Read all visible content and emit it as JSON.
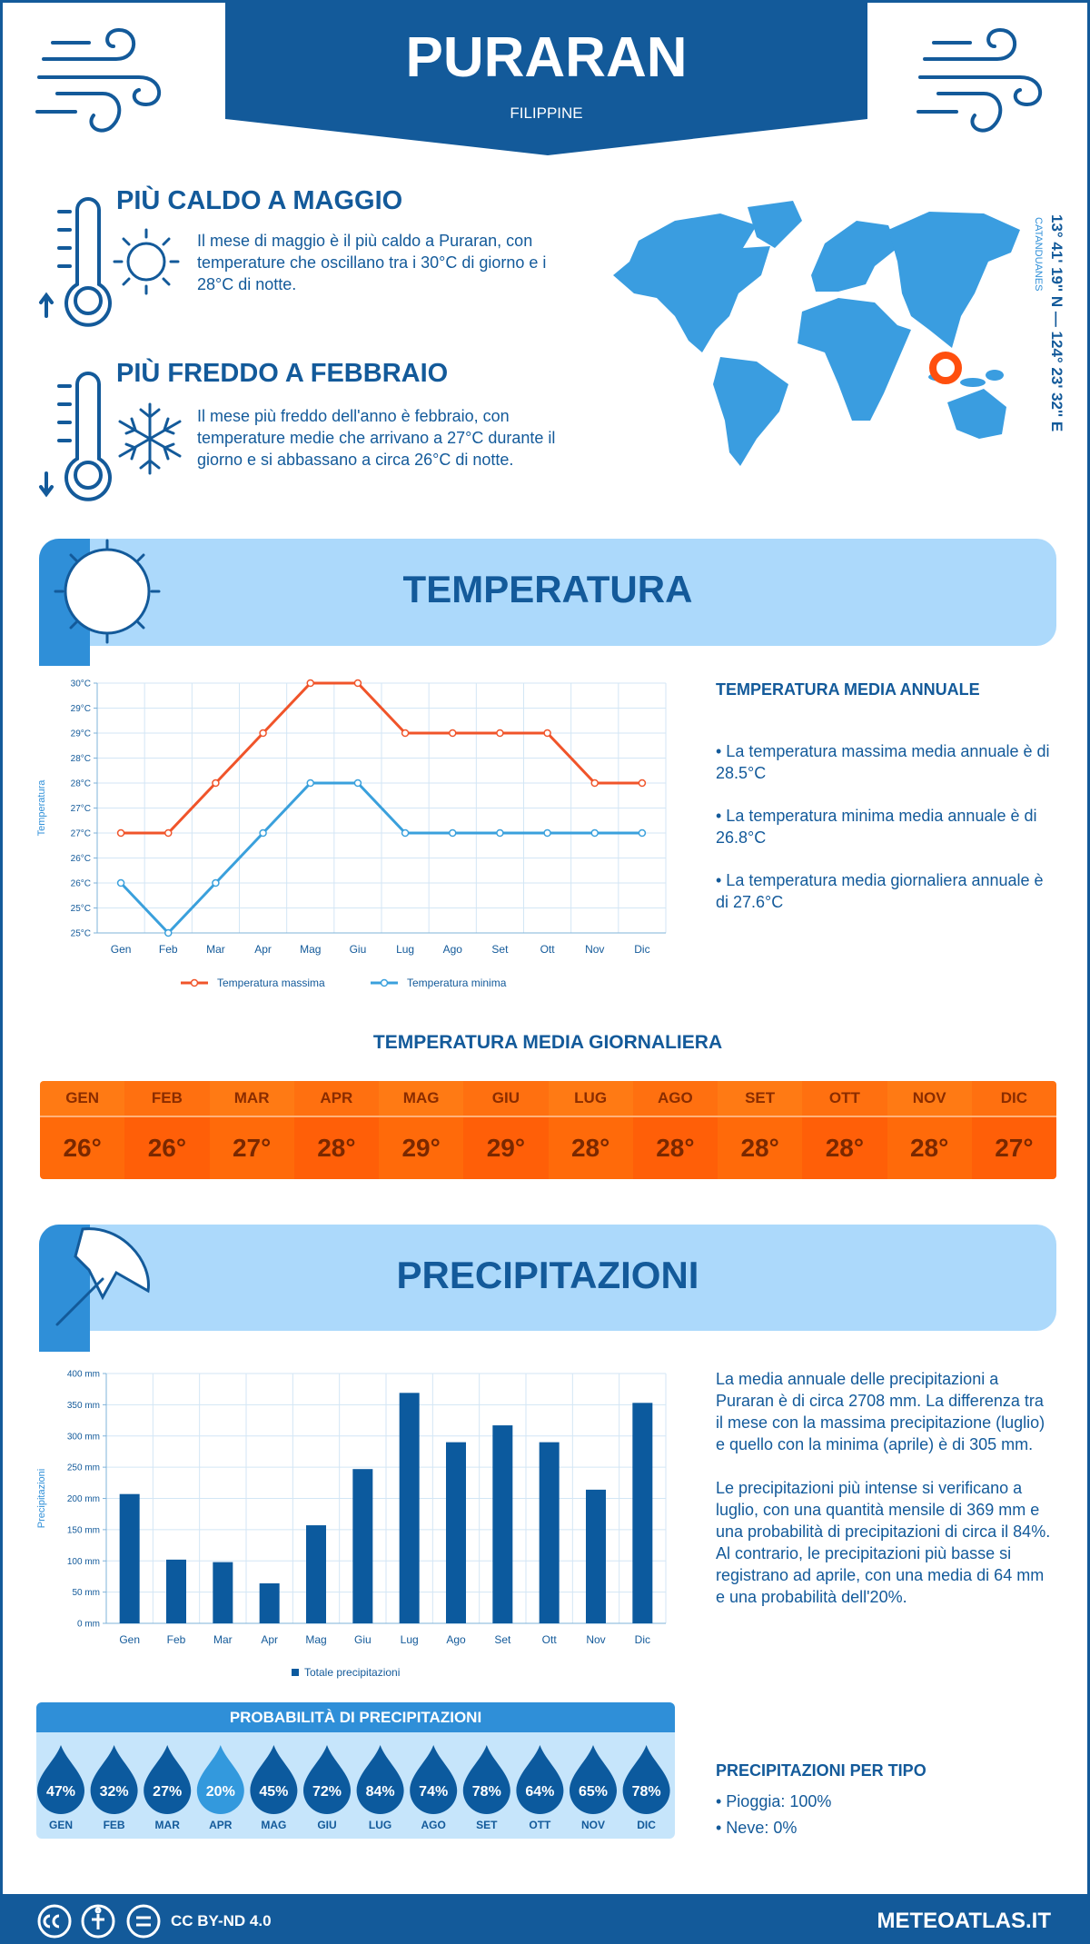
{
  "header": {
    "title": "PURARAN",
    "subtitle": "FILIPPINE"
  },
  "hottest": {
    "title": "PIÙ CALDO A MAGGIO",
    "text": "Il mese di maggio è il più caldo a Puraran, con temperature che oscillano tra i 30°C di giorno e i 28°C di notte."
  },
  "coldest": {
    "title": "PIÙ FREDDO A FEBBRAIO",
    "text": "Il mese più freddo dell'anno è febbraio, con temperature medie che arrivano a 27°C durante il giorno e si abbassano a circa 26°C di notte."
  },
  "location": {
    "coordinates": "13° 41' 19'' N — 124° 23' 32'' E",
    "region": "CATANDUANES"
  },
  "temperature_section": {
    "title": "TEMPERATURA",
    "annual_title": "TEMPERATURA MEDIA ANNUALE",
    "annual_points": [
      "• La temperatura massima media annuale è di 28.5°C",
      "• La temperatura minima media annuale è di 26.8°C",
      "• La temperatura media giornaliera annuale è di 27.6°C"
    ]
  },
  "chart_data": [
    {
      "type": "line",
      "y_label": "Temperatura",
      "categories": [
        "Gen",
        "Feb",
        "Mar",
        "Apr",
        "Mag",
        "Giu",
        "Lug",
        "Ago",
        "Set",
        "Ott",
        "Nov",
        "Dic"
      ],
      "series": [
        {
          "name": "Temperatura massima",
          "color": "#f0542a",
          "values": [
            27,
            27,
            28,
            29,
            30,
            30,
            29,
            29,
            29,
            29,
            28,
            28
          ]
        },
        {
          "name": "Temperatura minima",
          "color": "#3aa0dc",
          "values": [
            26,
            25,
            26,
            27,
            28,
            28,
            27,
            27,
            27,
            27,
            27,
            27
          ]
        }
      ],
      "ylim": [
        25,
        30
      ],
      "yticks": [
        {
          "value": 25,
          "label": "25°C"
        },
        {
          "value": 25.5,
          "label": "25°C"
        },
        {
          "value": 26,
          "label": "26°C"
        },
        {
          "value": 26.5,
          "label": "26°C"
        },
        {
          "value": 27,
          "label": "27°C"
        },
        {
          "value": 27.5,
          "label": "27°C"
        },
        {
          "value": 28,
          "label": "28°C"
        },
        {
          "value": 28.5,
          "label": "28°C"
        },
        {
          "value": 29,
          "label": "29°C"
        },
        {
          "value": 29.5,
          "label": "29°C"
        },
        {
          "value": 30,
          "label": "30°C"
        }
      ],
      "grid": true
    },
    {
      "type": "bar",
      "y_label": "Precipitazioni",
      "categories": [
        "Gen",
        "Feb",
        "Mar",
        "Apr",
        "Mag",
        "Giu",
        "Lug",
        "Ago",
        "Set",
        "Ott",
        "Nov",
        "Dic"
      ],
      "series": [
        {
          "name": "Totale precipitazioni",
          "color": "#0c5a9e",
          "values": [
            207,
            102,
            98,
            64,
            157,
            247,
            369,
            290,
            317,
            290,
            214,
            353
          ]
        }
      ],
      "ylim": [
        0,
        400
      ],
      "yticks": [
        {
          "value": 0,
          "label": "0 mm"
        },
        {
          "value": 50,
          "label": "50 mm"
        },
        {
          "value": 100,
          "label": "100 mm"
        },
        {
          "value": 150,
          "label": "150 mm"
        },
        {
          "value": 200,
          "label": "200 mm"
        },
        {
          "value": 250,
          "label": "250 mm"
        },
        {
          "value": 300,
          "label": "300 mm"
        },
        {
          "value": 350,
          "label": "350 mm"
        },
        {
          "value": 400,
          "label": "400 mm"
        }
      ],
      "grid": true
    }
  ],
  "daily_mean": {
    "title": "TEMPERATURA MEDIA GIORNALIERA",
    "months": [
      "GEN",
      "FEB",
      "MAR",
      "APR",
      "MAG",
      "GIU",
      "LUG",
      "AGO",
      "SET",
      "OTT",
      "NOV",
      "DIC"
    ],
    "values": [
      "26°",
      "26°",
      "27°",
      "28°",
      "29°",
      "29°",
      "28°",
      "28°",
      "28°",
      "28°",
      "28°",
      "27°"
    ]
  },
  "precipitation_section": {
    "title": "PRECIPITAZIONI",
    "paragraphs": [
      "La media annuale delle precipitazioni a Puraran è di circa 2708 mm. La differenza tra il mese con la massima precipitazione (luglio) e quello con la minima (aprile) è di 305 mm.",
      "Le precipitazioni più intense si verificano a luglio, con una quantità mensile di 369 mm e una probabilità di precipitazioni di circa il 84%. Al contrario, le precipitazioni più basse si registrano ad aprile, con una media di 64 mm e una probabilità dell'20%."
    ],
    "probability": {
      "title": "PROBABILITÀ DI PRECIPITAZIONI",
      "months": [
        "GEN",
        "FEB",
        "MAR",
        "APR",
        "MAG",
        "GIU",
        "LUG",
        "AGO",
        "SET",
        "OTT",
        "NOV",
        "DIC"
      ],
      "values": [
        47,
        32,
        27,
        20,
        45,
        72,
        84,
        74,
        78,
        64,
        65,
        78
      ],
      "value_labels": [
        "47%",
        "32%",
        "27%",
        "20%",
        "45%",
        "72%",
        "84%",
        "74%",
        "78%",
        "64%",
        "65%",
        "78%"
      ]
    },
    "type_title": "PRECIPITAZIONI PER TIPO",
    "type_items": [
      "• Pioggia: 100%",
      "• Neve: 0%"
    ]
  },
  "footer": {
    "license": "CC BY-ND 4.0",
    "site": "METEOATLAS.IT"
  }
}
